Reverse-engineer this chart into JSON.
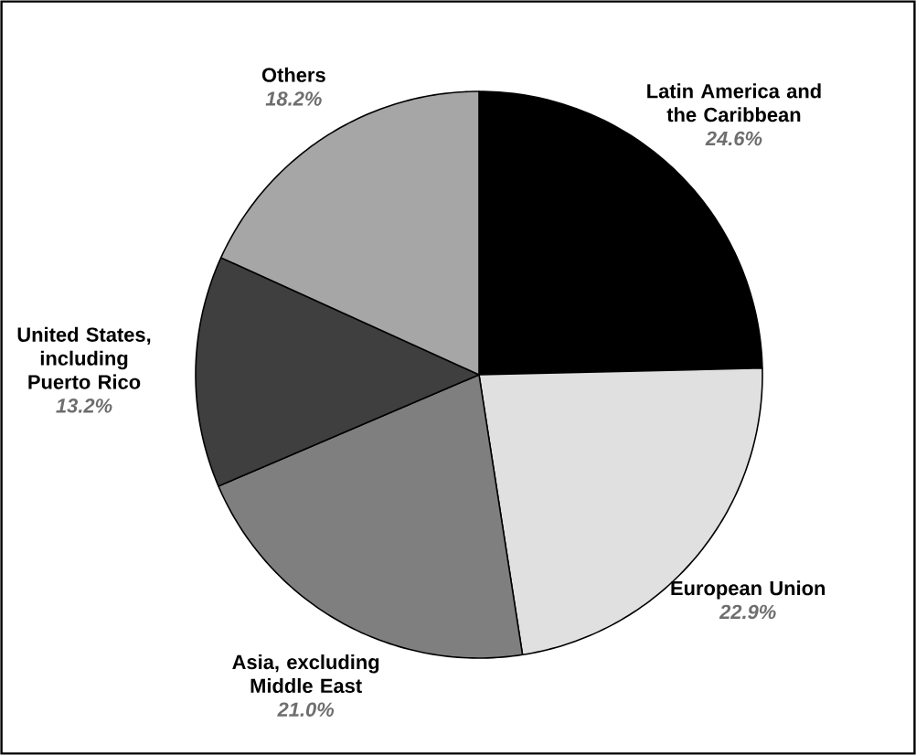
{
  "chart_data": {
    "type": "pie",
    "categories": [
      "Latin America and the Caribbean",
      "European Union",
      "Asia, excluding Middle East",
      "United States, including Puerto Rico",
      "Others"
    ],
    "values": [
      24.6,
      22.9,
      21.0,
      13.2,
      18.2
    ],
    "value_labels": [
      "24.6%",
      "22.9%",
      "21.0%",
      "13.2%",
      "18.2%"
    ],
    "colors": [
      "#000000",
      "#e0e0e0",
      "#7f7f7f",
      "#3f3f3f",
      "#a6a6a6"
    ]
  }
}
